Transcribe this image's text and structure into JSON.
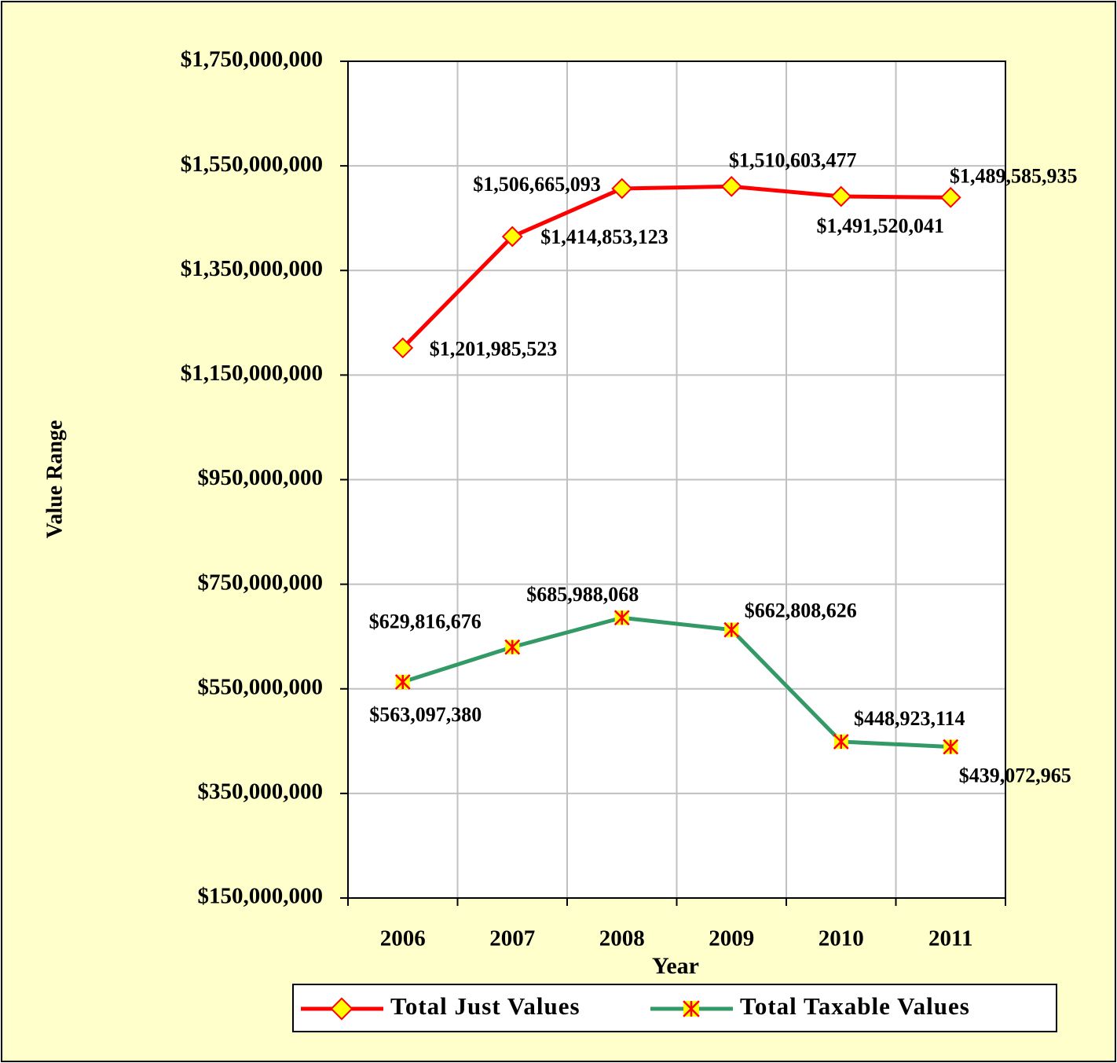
{
  "chart_data": {
    "type": "line",
    "y_label": "Value Range",
    "x_label": "Year",
    "categories": [
      "2006",
      "2007",
      "2008",
      "2009",
      "2010",
      "2011"
    ],
    "series": [
      {
        "name": "Total Just Values",
        "color": "#ff0000",
        "marker": "diamond",
        "marker_color": "#ffff00",
        "values": [
          1201985523,
          1414853123,
          1506665093,
          1510603477,
          1491520041,
          1489585935
        ],
        "value_labels": [
          "$1,201,985,523",
          "$1,414,853,123",
          "$1,506,665,093",
          "$1,510,603,477",
          "$1,491,520,041",
          "$1,489,585,935"
        ]
      },
      {
        "name": "Total Taxable Values",
        "color": "#339966",
        "marker": "star",
        "marker_color": "#ffff00",
        "values": [
          563097380,
          629816676,
          685988068,
          662808626,
          448923114,
          439072965
        ],
        "value_labels": [
          "$563,097,380",
          "$629,816,676",
          "$685,988,068",
          "$662,808,626",
          "$448,923,114",
          "$439,072,965"
        ]
      }
    ],
    "ylim": [
      150000000,
      1750000000
    ],
    "yticks": [
      {
        "value": 150000000,
        "label": "$150,000,000"
      },
      {
        "value": 350000000,
        "label": "$350,000,000"
      },
      {
        "value": 550000000,
        "label": "$550,000,000"
      },
      {
        "value": 750000000,
        "label": "$750,000,000"
      },
      {
        "value": 950000000,
        "label": "$950,000,000"
      },
      {
        "value": 1150000000,
        "label": "$1,150,000,000"
      },
      {
        "value": 1350000000,
        "label": "$1,350,000,000"
      },
      {
        "value": 1550000000,
        "label": "$1,550,000,000"
      },
      {
        "value": 1750000000,
        "label": "$1,750,000,000"
      }
    ],
    "grid": true,
    "legend": "bottom"
  }
}
